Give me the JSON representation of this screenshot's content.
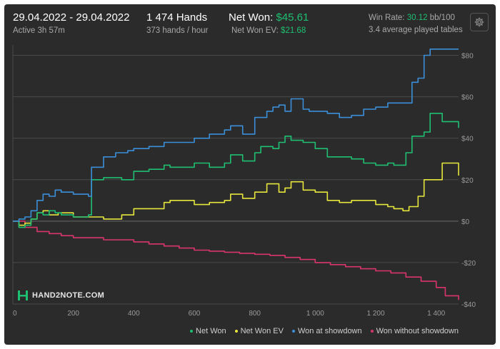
{
  "header": {
    "date_range": "29.04.2022 - 29.04.2022",
    "active": "Active 3h 57m",
    "hands": "1 474 Hands",
    "hands_per_hour": "373 hands / hour",
    "net_won_label": "Net Won:",
    "net_won_value": "$45.61",
    "net_won_ev_label": "Net Won  EV:",
    "net_won_ev_value": "$21.68",
    "win_rate_label": "Win Rate:",
    "win_rate_value": "30.12",
    "win_rate_unit": "bb/100",
    "tables": "3.4 average played tables"
  },
  "logo": {
    "text": "HAND2NOTE.COM"
  },
  "settings_icon": "gear-icon",
  "colors": {
    "net_won": "#1fbf72",
    "net_won_ev": "#e6e63c",
    "showdown": "#3b8fd9",
    "no_showdown": "#d9356b",
    "grid": "#4a4a4a",
    "accent_green": "#1fbf72"
  },
  "chart_data": {
    "type": "line",
    "title": "",
    "xlabel": "",
    "ylabel": "",
    "xlim": [
      0,
      1474
    ],
    "ylim": [
      -40,
      85
    ],
    "y_axis_side": "right",
    "x_ticks": [
      0,
      200,
      400,
      600,
      800,
      1000,
      1200,
      1400
    ],
    "x_tick_labels": [
      "0",
      "200",
      "400",
      "600",
      "800",
      "1 000",
      "1 200",
      "1 400"
    ],
    "y_ticks": [
      80,
      60,
      40,
      20,
      0,
      -20,
      -40
    ],
    "y_tick_labels": [
      "$80",
      "$60",
      "$40",
      "$20",
      "$0",
      "-$20",
      "-$40"
    ],
    "grid": true,
    "legend_position": "bottom-right",
    "series": [
      {
        "name": "Net Won",
        "x": [
          0,
          20,
          40,
          60,
          80,
          100,
          120,
          140,
          160,
          200,
          250,
          260,
          300,
          360,
          400,
          450,
          500,
          520,
          600,
          650,
          700,
          720,
          760,
          800,
          820,
          860,
          880,
          900,
          920,
          960,
          1000,
          1040,
          1080,
          1120,
          1160,
          1200,
          1240,
          1260,
          1300,
          1320,
          1360,
          1380,
          1420,
          1474
        ],
        "values": [
          0,
          -3,
          -2,
          1,
          4,
          3,
          5,
          4,
          3,
          2,
          3,
          20,
          21,
          20,
          24,
          25,
          27,
          26,
          28,
          26,
          28,
          32,
          29,
          33,
          36,
          35,
          38,
          41,
          39,
          38,
          35,
          31,
          31,
          30,
          28,
          27,
          28,
          27,
          33,
          41,
          43,
          52,
          48,
          45
        ]
      },
      {
        "name": "Net Won  EV",
        "x": [
          0,
          20,
          40,
          60,
          80,
          100,
          120,
          150,
          200,
          250,
          300,
          360,
          400,
          450,
          500,
          520,
          580,
          600,
          650,
          700,
          720,
          760,
          800,
          840,
          880,
          900,
          920,
          960,
          1000,
          1040,
          1080,
          1120,
          1160,
          1200,
          1240,
          1260,
          1290,
          1310,
          1340,
          1360,
          1380,
          1420,
          1474
        ],
        "values": [
          0,
          -2,
          -1,
          1,
          4,
          5,
          3,
          4,
          2,
          2,
          1,
          3,
          6,
          6,
          9,
          10,
          10,
          8,
          9,
          10,
          13,
          11,
          14,
          18,
          14,
          16,
          19,
          15,
          14,
          10,
          9,
          10,
          10,
          8,
          7,
          6,
          5,
          7,
          12,
          20,
          20,
          28,
          22
        ]
      },
      {
        "name": "Won at showdown",
        "x": [
          0,
          20,
          40,
          60,
          80,
          100,
          120,
          140,
          160,
          200,
          250,
          260,
          300,
          340,
          380,
          400,
          450,
          500,
          520,
          600,
          650,
          700,
          720,
          760,
          800,
          840,
          860,
          880,
          900,
          920,
          960,
          980,
          1000,
          1040,
          1080,
          1120,
          1160,
          1200,
          1240,
          1270,
          1300,
          1320,
          1340,
          1360,
          1380,
          1420,
          1474
        ],
        "values": [
          0,
          1,
          2,
          5,
          10,
          13,
          12,
          15,
          14,
          13,
          12,
          26,
          31,
          33,
          34,
          35,
          36,
          38,
          38,
          40,
          42,
          44,
          46,
          42,
          50,
          53,
          55,
          56,
          53,
          59,
          54,
          53,
          53,
          52,
          50,
          51,
          54,
          55,
          57,
          57,
          57,
          67,
          69,
          80,
          83,
          83,
          83
        ]
      },
      {
        "name": "Won without showdown",
        "x": [
          0,
          40,
          80,
          120,
          160,
          200,
          250,
          300,
          350,
          400,
          450,
          500,
          550,
          600,
          650,
          700,
          750,
          800,
          850,
          900,
          950,
          1000,
          1050,
          1100,
          1150,
          1200,
          1250,
          1300,
          1350,
          1400,
          1430,
          1474
        ],
        "values": [
          0,
          -3,
          -5,
          -6,
          -7,
          -8,
          -8,
          -9,
          -9,
          -10,
          -11,
          -12,
          -13,
          -14,
          -14.5,
          -15,
          -15.5,
          -16,
          -16.5,
          -17.5,
          -18.5,
          -20,
          -21,
          -22,
          -23,
          -24,
          -25,
          -27,
          -29,
          -32,
          -36,
          -38
        ]
      }
    ]
  }
}
